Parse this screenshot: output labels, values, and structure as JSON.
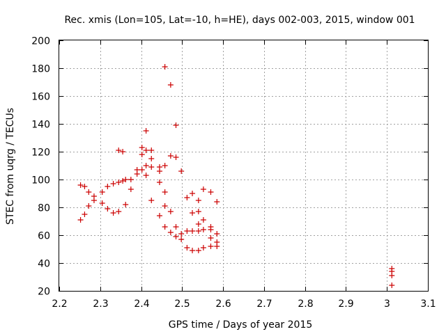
{
  "chart_data": {
    "type": "scatter",
    "title": "Rec. xmis (Lon=105, Lat=-10, h=HE), days 002-003, 2015, window 001",
    "xlabel": "GPS time / Days of year 2015",
    "ylabel": "STEC from uqrg / TECUs",
    "xlim": [
      2.2,
      3.1
    ],
    "ylim": [
      20,
      200
    ],
    "xticks": [
      "2.2",
      "2.3",
      "2.4",
      "2.5",
      "2.6",
      "2.7",
      "2.8",
      "2.9",
      "3",
      "3.1"
    ],
    "yticks": [
      "20",
      "40",
      "60",
      "80",
      "100",
      "120",
      "140",
      "160",
      "180",
      "200"
    ],
    "grid": true,
    "marker": "+",
    "color": "#cc0000",
    "series": [
      {
        "name": "STEC",
        "points": [
          [
            2.252,
            96
          ],
          [
            2.252,
            71
          ],
          [
            2.262,
            95
          ],
          [
            2.262,
            75
          ],
          [
            2.272,
            91
          ],
          [
            2.272,
            81
          ],
          [
            2.285,
            88
          ],
          [
            2.285,
            85
          ],
          [
            2.305,
            91
          ],
          [
            2.305,
            83
          ],
          [
            2.318,
            95
          ],
          [
            2.318,
            79
          ],
          [
            2.332,
            97
          ],
          [
            2.332,
            76
          ],
          [
            2.345,
            121
          ],
          [
            2.345,
            98
          ],
          [
            2.345,
            77
          ],
          [
            2.355,
            120
          ],
          [
            2.355,
            99
          ],
          [
            2.362,
            82
          ],
          [
            2.362,
            100
          ],
          [
            2.375,
            100
          ],
          [
            2.375,
            93
          ],
          [
            2.39,
            107
          ],
          [
            2.39,
            104
          ],
          [
            2.402,
            123
          ],
          [
            2.402,
            118
          ],
          [
            2.402,
            107
          ],
          [
            2.412,
            135
          ],
          [
            2.412,
            121
          ],
          [
            2.412,
            110
          ],
          [
            2.412,
            103
          ],
          [
            2.425,
            121
          ],
          [
            2.425,
            115
          ],
          [
            2.425,
            109
          ],
          [
            2.425,
            85
          ],
          [
            2.445,
            109
          ],
          [
            2.445,
            106
          ],
          [
            2.445,
            98
          ],
          [
            2.445,
            74
          ],
          [
            2.458,
            181
          ],
          [
            2.458,
            110
          ],
          [
            2.458,
            91
          ],
          [
            2.458,
            81
          ],
          [
            2.458,
            66
          ],
          [
            2.472,
            168
          ],
          [
            2.472,
            117
          ],
          [
            2.472,
            77
          ],
          [
            2.472,
            62
          ],
          [
            2.485,
            139
          ],
          [
            2.485,
            116
          ],
          [
            2.485,
            66
          ],
          [
            2.485,
            59
          ],
          [
            2.498,
            106
          ],
          [
            2.498,
            61
          ],
          [
            2.498,
            57
          ],
          [
            2.512,
            87
          ],
          [
            2.512,
            63
          ],
          [
            2.512,
            51
          ],
          [
            2.525,
            90
          ],
          [
            2.525,
            76
          ],
          [
            2.525,
            63
          ],
          [
            2.525,
            49
          ],
          [
            2.54,
            85
          ],
          [
            2.54,
            77
          ],
          [
            2.54,
            68
          ],
          [
            2.54,
            63
          ],
          [
            2.54,
            49
          ],
          [
            2.552,
            93
          ],
          [
            2.552,
            71
          ],
          [
            2.552,
            64
          ],
          [
            2.552,
            51
          ],
          [
            2.57,
            91
          ],
          [
            2.57,
            66
          ],
          [
            2.57,
            64
          ],
          [
            2.57,
            58
          ],
          [
            2.57,
            52
          ],
          [
            2.585,
            84
          ],
          [
            2.585,
            61
          ],
          [
            2.585,
            55
          ],
          [
            2.585,
            52
          ],
          [
            3.012,
            36
          ],
          [
            3.012,
            34
          ],
          [
            3.012,
            31
          ],
          [
            3.012,
            24
          ]
        ]
      }
    ]
  }
}
